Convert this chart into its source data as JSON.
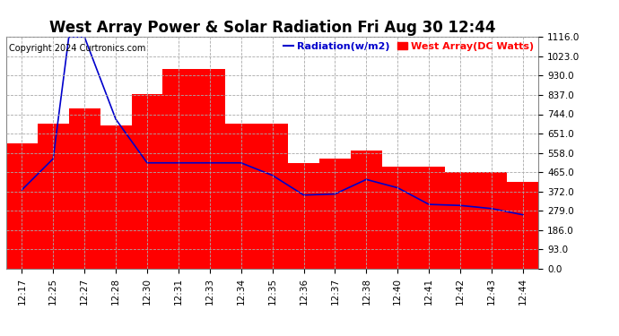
{
  "title": "West Array Power & Solar Radiation Fri Aug 30 12:44",
  "copyright": "Copyright 2024 Curtronics.com",
  "legend_radiation": "Radiation(w/m2)",
  "legend_west": "West Array(DC Watts)",
  "x_labels": [
    "12:17",
    "12:25",
    "12:27",
    "12:28",
    "12:30",
    "12:31",
    "12:33",
    "12:34",
    "12:35",
    "12:36",
    "12:37",
    "12:38",
    "12:40",
    "12:41",
    "12:42",
    "12:43",
    "12:44"
  ],
  "bar_values": [
    605,
    700,
    770,
    690,
    840,
    960,
    960,
    700,
    700,
    510,
    530,
    570,
    490,
    490,
    465,
    465,
    420
  ],
  "radiation_x": [
    0,
    1,
    1.5,
    2,
    3,
    4,
    5,
    6,
    7,
    8,
    9,
    10,
    11,
    12,
    13,
    14,
    15,
    16
  ],
  "radiation_y": [
    380,
    530,
    1116,
    1116,
    720,
    510,
    510,
    510,
    510,
    450,
    355,
    360,
    430,
    390,
    310,
    305,
    290,
    260
  ],
  "ylim": [
    0,
    1116
  ],
  "yticks": [
    0.0,
    93.0,
    186.0,
    279.0,
    372.0,
    465.0,
    558.0,
    651.0,
    744.0,
    837.0,
    930.0,
    1023.0,
    1116.0
  ],
  "bar_color": "#FF0000",
  "line_color": "#0000CC",
  "bg_color": "#FFFFFF",
  "plot_bg_color": "#FFFFFF",
  "grid_color": "#AAAAAA",
  "title_fontsize": 12,
  "copyright_fontsize": 7,
  "tick_fontsize": 7.5,
  "legend_fontsize": 8
}
